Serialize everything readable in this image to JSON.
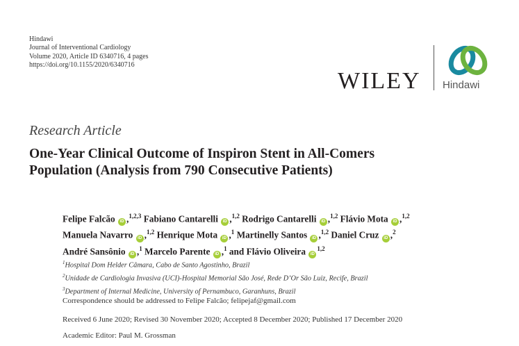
{
  "header": {
    "publisher": "Hindawi",
    "journal": "Journal of Interventional Cardiology",
    "volume": "Volume 2020, Article ID 6340716, 4 pages",
    "doi": "https://doi.org/10.1155/2020/6340716"
  },
  "logos": {
    "wiley": "WILEY",
    "hindawi": "Hindawi",
    "colors": {
      "teal": "#1a8aa0",
      "green": "#6db33f"
    }
  },
  "article_type": "Research Article",
  "title_lines": [
    "One-Year Clinical Outcome of Inspiron Stent in All-Comers",
    "Population (Analysis from 790 Consecutive Patients)"
  ],
  "authors": [
    {
      "name": "Felipe Falcão",
      "aff": "1,2,3"
    },
    {
      "name": "Fabiano Cantarelli",
      "aff": "1,2"
    },
    {
      "name": "Rodrigo Cantarelli",
      "aff": "1,2"
    },
    {
      "name": "Flávio Mota",
      "aff": "1,2"
    },
    {
      "name": "Manuela Navarro",
      "aff": "1,2"
    },
    {
      "name": "Henrique Mota",
      "aff": "1"
    },
    {
      "name": "Martinelly Santos",
      "aff": "1,2"
    },
    {
      "name": "Daniel Cruz",
      "aff": "2"
    },
    {
      "name": "André Sansônio",
      "aff": "1"
    },
    {
      "name": "Marcelo Parente",
      "aff": "1"
    },
    {
      "name": "Flávio Oliveira",
      "aff": "1,2"
    }
  ],
  "and_word": "and",
  "orcid_label": "iD",
  "affiliations": [
    {
      "num": "1",
      "text": "Hospital Dom Helder Câmara, Cabo de Santo Agostinho, Brazil"
    },
    {
      "num": "2",
      "text": "Unidade de Cardiologia Invasiva (UCI)-Hospital Memorial São José, Rede D’Or São Luiz, Recife, Brazil"
    },
    {
      "num": "3",
      "text": "Department of Internal Medicine, University of Pernambuco, Garanhuns, Brazil"
    }
  ],
  "correspondence": "Correspondence should be addressed to Felipe Falcão; felipejaf@gmail.com",
  "dates": "Received 6 June 2020; Revised 30 November 2020; Accepted 8 December 2020; Published 17 December 2020",
  "editor": "Academic Editor: Paul M. Grossman"
}
